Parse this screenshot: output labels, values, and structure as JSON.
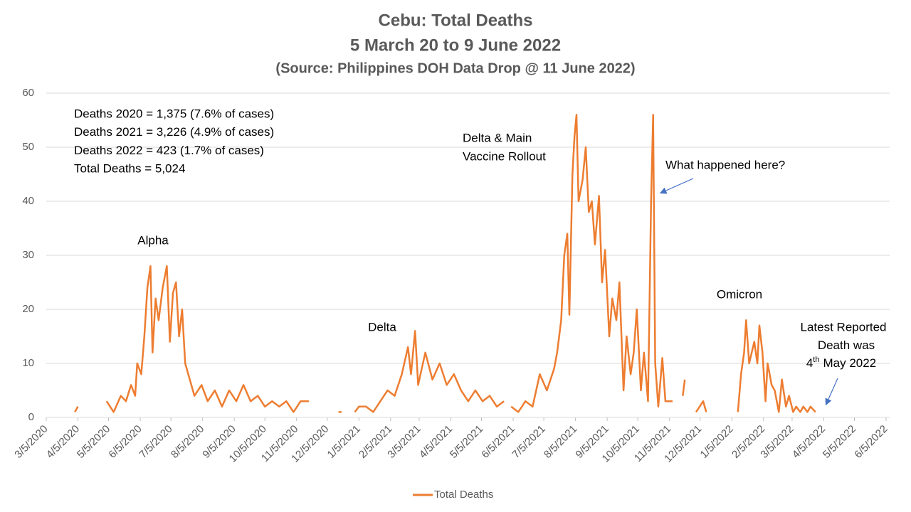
{
  "chart_data": {
    "type": "line",
    "title": "Cebu: Total Deaths",
    "subtitle": "5 March 20 to 9 June 2022",
    "source": "(Source: Philippines DOH Data Drop @ 11 June 2022)",
    "xlim": [
      "2020-03-05",
      "2022-06-05"
    ],
    "ylim": [
      0,
      60
    ],
    "yticks": [
      0,
      10,
      20,
      30,
      40,
      50,
      60
    ],
    "grid": true,
    "legend": "bottom",
    "xticks": [
      {
        "value": "2020-03-05",
        "label": "3/5/2020"
      },
      {
        "value": "2020-04-05",
        "label": "4/5/2020"
      },
      {
        "value": "2020-05-05",
        "label": "5/5/2020"
      },
      {
        "value": "2020-06-05",
        "label": "6/5/2020"
      },
      {
        "value": "2020-07-05",
        "label": "7/5/2020"
      },
      {
        "value": "2020-08-05",
        "label": "8/5/2020"
      },
      {
        "value": "2020-09-05",
        "label": "9/5/2020"
      },
      {
        "value": "2020-10-05",
        "label": "10/5/2020"
      },
      {
        "value": "2020-11-05",
        "label": "11/5/2020"
      },
      {
        "value": "2020-12-05",
        "label": "12/5/2020"
      },
      {
        "value": "2021-01-05",
        "label": "1/5/2021"
      },
      {
        "value": "2021-02-05",
        "label": "2/5/2021"
      },
      {
        "value": "2021-03-05",
        "label": "3/5/2021"
      },
      {
        "value": "2021-04-05",
        "label": "4/5/2021"
      },
      {
        "value": "2021-05-05",
        "label": "5/5/2021"
      },
      {
        "value": "2021-06-05",
        "label": "6/5/2021"
      },
      {
        "value": "2021-07-05",
        "label": "7/5/2021"
      },
      {
        "value": "2021-08-05",
        "label": "8/5/2021"
      },
      {
        "value": "2021-09-05",
        "label": "9/5/2021"
      },
      {
        "value": "2021-10-05",
        "label": "10/5/2021"
      },
      {
        "value": "2021-11-05",
        "label": "11/5/2021"
      },
      {
        "value": "2021-12-05",
        "label": "12/5/2021"
      },
      {
        "value": "2022-01-05",
        "label": "1/5/2022"
      },
      {
        "value": "2022-02-05",
        "label": "2/5/2022"
      },
      {
        "value": "2022-03-05",
        "label": "3/5/2022"
      },
      {
        "value": "2022-04-05",
        "label": "4/5/2022"
      },
      {
        "value": "2022-05-05",
        "label": "5/5/2022"
      },
      {
        "value": "2022-06-05",
        "label": "6/5/2022"
      }
    ],
    "x": [
      "2020-04-02",
      "2020-04-05",
      "2020-04-18",
      "2020-05-03",
      "2020-05-10",
      "2020-05-17",
      "2020-05-22",
      "2020-05-27",
      "2020-05-31",
      "2020-06-02",
      "2020-06-06",
      "2020-06-09",
      "2020-06-12",
      "2020-06-15",
      "2020-06-17",
      "2020-06-20",
      "2020-06-23",
      "2020-06-27",
      "2020-07-01",
      "2020-07-04",
      "2020-07-07",
      "2020-07-10",
      "2020-07-13",
      "2020-07-16",
      "2020-07-19",
      "2020-07-22",
      "2020-07-28",
      "2020-08-04",
      "2020-08-10",
      "2020-08-17",
      "2020-08-24",
      "2020-08-31",
      "2020-09-07",
      "2020-09-14",
      "2020-09-21",
      "2020-09-28",
      "2020-10-05",
      "2020-10-12",
      "2020-10-19",
      "2020-10-26",
      "2020-11-02",
      "2020-11-09",
      "2020-11-17",
      "2020-12-01",
      "2020-12-16",
      "2020-12-19",
      "2020-12-25",
      "2021-01-01",
      "2021-01-05",
      "2021-01-12",
      "2021-01-19",
      "2021-01-26",
      "2021-02-02",
      "2021-02-09",
      "2021-02-16",
      "2021-02-22",
      "2021-02-25",
      "2021-03-01",
      "2021-03-04",
      "2021-03-11",
      "2021-03-18",
      "2021-03-25",
      "2021-04-01",
      "2021-04-08",
      "2021-04-15",
      "2021-04-22",
      "2021-04-29",
      "2021-05-06",
      "2021-05-13",
      "2021-05-20",
      "2021-05-27",
      "2021-05-31",
      "2021-06-03",
      "2021-06-10",
      "2021-06-17",
      "2021-06-24",
      "2021-07-01",
      "2021-07-08",
      "2021-07-15",
      "2021-07-18",
      "2021-07-22",
      "2021-07-25",
      "2021-07-28",
      "2021-07-30",
      "2021-08-02",
      "2021-08-04",
      "2021-08-06",
      "2021-08-08",
      "2021-08-12",
      "2021-08-15",
      "2021-08-18",
      "2021-08-21",
      "2021-08-24",
      "2021-08-28",
      "2021-08-31",
      "2021-09-03",
      "2021-09-07",
      "2021-09-10",
      "2021-09-14",
      "2021-09-17",
      "2021-09-21",
      "2021-09-24",
      "2021-09-28",
      "2021-10-01",
      "2021-10-04",
      "2021-10-08",
      "2021-10-11",
      "2021-10-15",
      "2021-10-18",
      "2021-10-20",
      "2021-10-22",
      "2021-10-25",
      "2021-10-29",
      "2021-11-01",
      "2021-11-05",
      "2021-11-08",
      "2021-11-13",
      "2021-11-18",
      "2021-11-20",
      "2021-11-25",
      "2021-12-01",
      "2021-12-08",
      "2021-12-11",
      "2021-12-25",
      "2022-01-11",
      "2022-01-14",
      "2022-01-17",
      "2022-01-19",
      "2022-01-22",
      "2022-01-27",
      "2022-01-30",
      "2022-02-01",
      "2022-02-04",
      "2022-02-07",
      "2022-02-09",
      "2022-02-13",
      "2022-02-16",
      "2022-02-20",
      "2022-02-23",
      "2022-02-27",
      "2022-03-02",
      "2022-03-06",
      "2022-03-09",
      "2022-03-13",
      "2022-03-16",
      "2022-03-20",
      "2022-03-23",
      "2022-03-28"
    ],
    "series": [
      {
        "name": "Total Deaths",
        "color": "#ED7D31",
        "values": [
          1,
          2,
          null,
          3,
          1,
          4,
          3,
          6,
          4,
          10,
          8,
          15,
          24,
          28,
          12,
          22,
          18,
          24,
          28,
          14,
          23,
          25,
          15,
          20,
          10,
          8,
          4,
          6,
          3,
          5,
          2,
          5,
          3,
          6,
          3,
          4,
          2,
          3,
          2,
          3,
          1,
          3,
          3,
          null,
          1,
          1,
          null,
          1,
          2,
          2,
          1,
          3,
          5,
          4,
          8,
          13,
          8,
          16,
          6,
          12,
          7,
          10,
          6,
          8,
          5,
          3,
          5,
          3,
          4,
          2,
          3,
          null,
          2,
          1,
          3,
          2,
          8,
          5,
          9,
          12,
          18,
          30,
          34,
          19,
          45,
          52,
          56,
          40,
          44,
          50,
          38,
          40,
          32,
          41,
          25,
          31,
          15,
          22,
          18,
          25,
          5,
          15,
          8,
          12,
          20,
          5,
          12,
          3,
          40,
          56,
          10,
          2,
          11,
          3,
          3,
          3,
          null,
          4,
          7,
          null,
          1,
          3,
          1,
          null,
          1,
          8,
          12,
          18,
          10,
          14,
          10,
          17,
          12,
          3,
          10,
          6,
          5,
          1,
          7,
          2,
          4,
          1,
          2,
          1,
          2,
          1,
          2,
          1
        ]
      }
    ],
    "annotations": [
      {
        "lines": [
          "Deaths 2020 = 1,375 (7.6% of cases)",
          "Deaths 2021 = 3,226 (4.9% of cases)",
          "Deaths 2022 = 423 (1.7% of cases)",
          "Total Deaths = 5,024"
        ]
      },
      {
        "lines": [
          "Alpha"
        ]
      },
      {
        "lines": [
          "Delta"
        ]
      },
      {
        "lines": [
          "Delta & Main",
          "Vaccine Rollout"
        ]
      },
      {
        "lines": [
          "What happened here?"
        ]
      },
      {
        "lines": [
          "Omicron"
        ]
      },
      {
        "lines": [
          "Latest Reported",
          "Death was",
          "4",
          "th",
          "May 2022"
        ]
      }
    ]
  }
}
